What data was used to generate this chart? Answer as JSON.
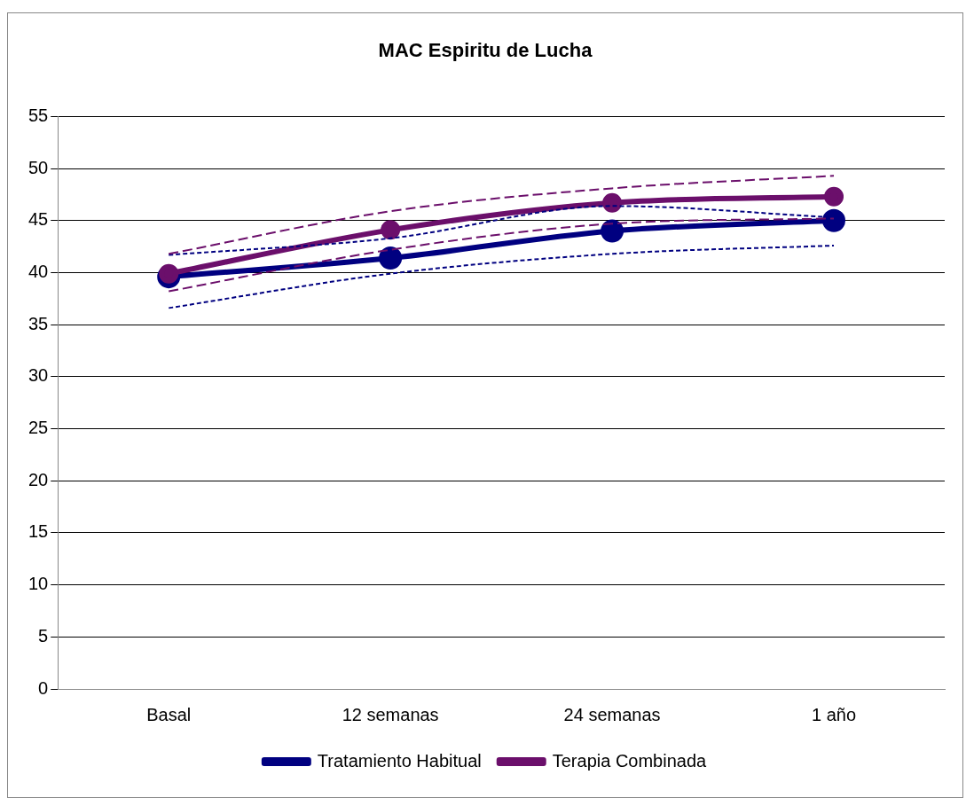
{
  "chart_data": {
    "type": "line",
    "title": "MAC Espiritu de Lucha",
    "categories": [
      "Basal",
      "12 semanas",
      "24 semanas",
      "1 año"
    ],
    "series": [
      {
        "color": "#000080",
        "values": [
          36.6,
          39.9,
          41.8,
          42.6
        ],
        "line_style": "dotted",
        "marker": "none"
      },
      {
        "color": "#000080",
        "values": [
          41.7,
          43.3,
          46.4,
          45.3
        ],
        "line_style": "dotted",
        "marker": "none"
      },
      {
        "color": "#6b0f6b",
        "values": [
          38.2,
          42.2,
          44.7,
          45.2
        ],
        "line_style": "dashed",
        "marker": "none"
      },
      {
        "color": "#6b0f6b",
        "values": [
          41.8,
          45.9,
          48.1,
          49.3
        ],
        "line_style": "dashed",
        "marker": "none"
      },
      {
        "name": "Tratamiento Habitual",
        "color": "#000080",
        "values": [
          39.6,
          41.4,
          44.0,
          45.0
        ]
      },
      {
        "name": "Terapia Combinada",
        "color": "#6b0f6b",
        "values": [
          39.9,
          44.1,
          46.7,
          47.3
        ]
      }
    ],
    "ylim": [
      0,
      55
    ],
    "yticks": [
      0,
      5,
      10,
      15,
      20,
      25,
      30,
      35,
      40,
      45,
      50,
      55
    ],
    "grid": "y",
    "legend": "bottom",
    "marker": "circle",
    "line_style": "solid"
  }
}
